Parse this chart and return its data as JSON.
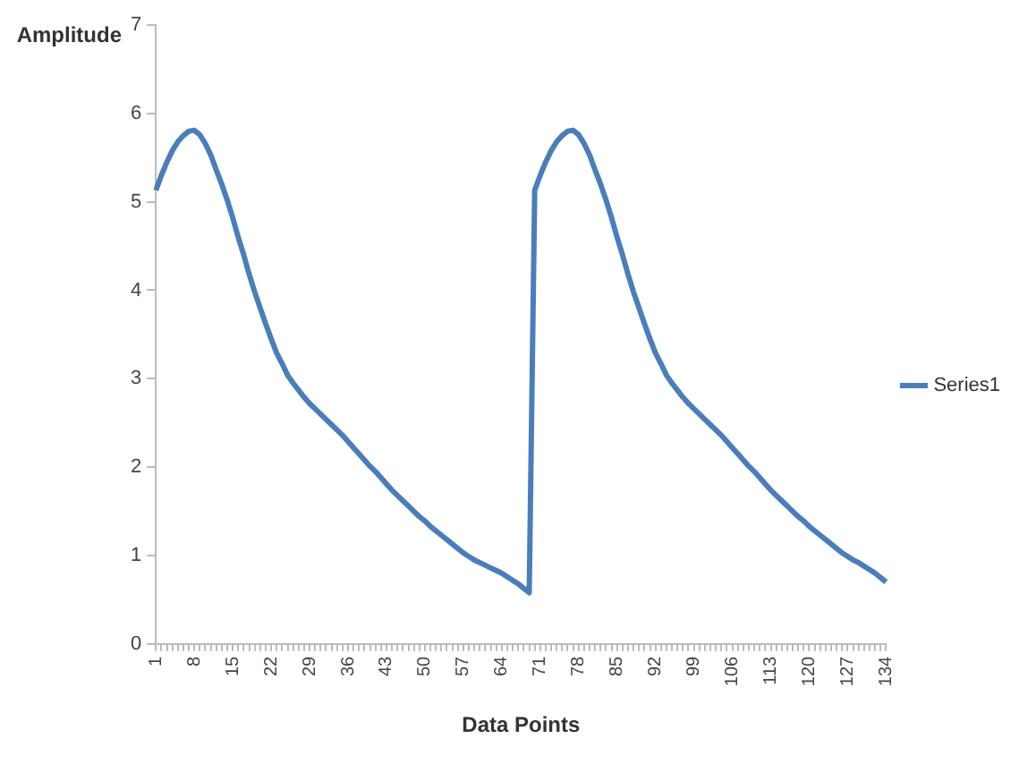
{
  "chart_data": {
    "type": "line",
    "xlabel": "Data Points",
    "ylabel": "Amplitude",
    "categories": [
      "1",
      null,
      null,
      null,
      null,
      null,
      null,
      "8",
      null,
      null,
      null,
      null,
      null,
      null,
      "15",
      null,
      null,
      null,
      null,
      null,
      null,
      "22",
      null,
      null,
      null,
      null,
      null,
      null,
      "29",
      null,
      null,
      null,
      null,
      null,
      null,
      "36",
      null,
      null,
      null,
      null,
      null,
      null,
      "43",
      null,
      null,
      null,
      null,
      null,
      null,
      "50",
      null,
      null,
      null,
      null,
      null,
      null,
      "57",
      null,
      null,
      null,
      null,
      null,
      null,
      "64",
      null,
      null,
      null,
      null,
      null,
      null,
      "71",
      null,
      null,
      null,
      null,
      null,
      null,
      "78",
      null,
      null,
      null,
      null,
      null,
      null,
      "85",
      null,
      null,
      null,
      null,
      null,
      null,
      "92",
      null,
      null,
      null,
      null,
      null,
      null,
      "99",
      null,
      null,
      null,
      null,
      null,
      null,
      "106",
      null,
      null,
      null,
      null,
      null,
      null,
      "113",
      null,
      null,
      null,
      null,
      null,
      null,
      "120",
      null,
      null,
      null,
      null,
      null,
      null,
      "127",
      null,
      null,
      null,
      null,
      null,
      null,
      "134"
    ],
    "series": [
      {
        "name": "Series1",
        "color": "#4a7ebb",
        "values": [
          5.13,
          5.3,
          5.45,
          5.58,
          5.68,
          5.75,
          5.8,
          5.81,
          5.76,
          5.66,
          5.53,
          5.36,
          5.2,
          5.02,
          4.82,
          4.6,
          4.4,
          4.18,
          3.98,
          3.8,
          3.62,
          3.45,
          3.29,
          3.17,
          3.04,
          2.95,
          2.87,
          2.79,
          2.72,
          2.66,
          2.6,
          2.54,
          2.48,
          2.42,
          2.36,
          2.29,
          2.22,
          2.15,
          2.08,
          2.01,
          1.95,
          1.88,
          1.81,
          1.74,
          1.68,
          1.62,
          1.56,
          1.5,
          1.44,
          1.39,
          1.33,
          1.28,
          1.23,
          1.18,
          1.13,
          1.08,
          1.03,
          0.99,
          0.95,
          0.92,
          0.89,
          0.86,
          0.83,
          0.8,
          0.76,
          0.72,
          0.68,
          0.63,
          0.58,
          5.13,
          5.3,
          5.45,
          5.58,
          5.68,
          5.75,
          5.8,
          5.81,
          5.76,
          5.66,
          5.53,
          5.36,
          5.2,
          5.02,
          4.82,
          4.6,
          4.4,
          4.18,
          3.98,
          3.8,
          3.62,
          3.45,
          3.29,
          3.17,
          3.04,
          2.95,
          2.87,
          2.79,
          2.72,
          2.66,
          2.6,
          2.54,
          2.48,
          2.42,
          2.36,
          2.29,
          2.22,
          2.15,
          2.08,
          2.01,
          1.95,
          1.88,
          1.81,
          1.74,
          1.68,
          1.62,
          1.56,
          1.5,
          1.44,
          1.39,
          1.33,
          1.28,
          1.23,
          1.18,
          1.13,
          1.08,
          1.03,
          0.99,
          0.95,
          0.92,
          0.88,
          0.84,
          0.8,
          0.75,
          0.7
        ]
      }
    ],
    "ylim": [
      0,
      7
    ],
    "yticks": [
      0,
      1,
      2,
      3,
      4,
      5,
      6,
      7
    ],
    "grid": false,
    "legend": "right",
    "marker": "none",
    "line_style": "solid"
  }
}
